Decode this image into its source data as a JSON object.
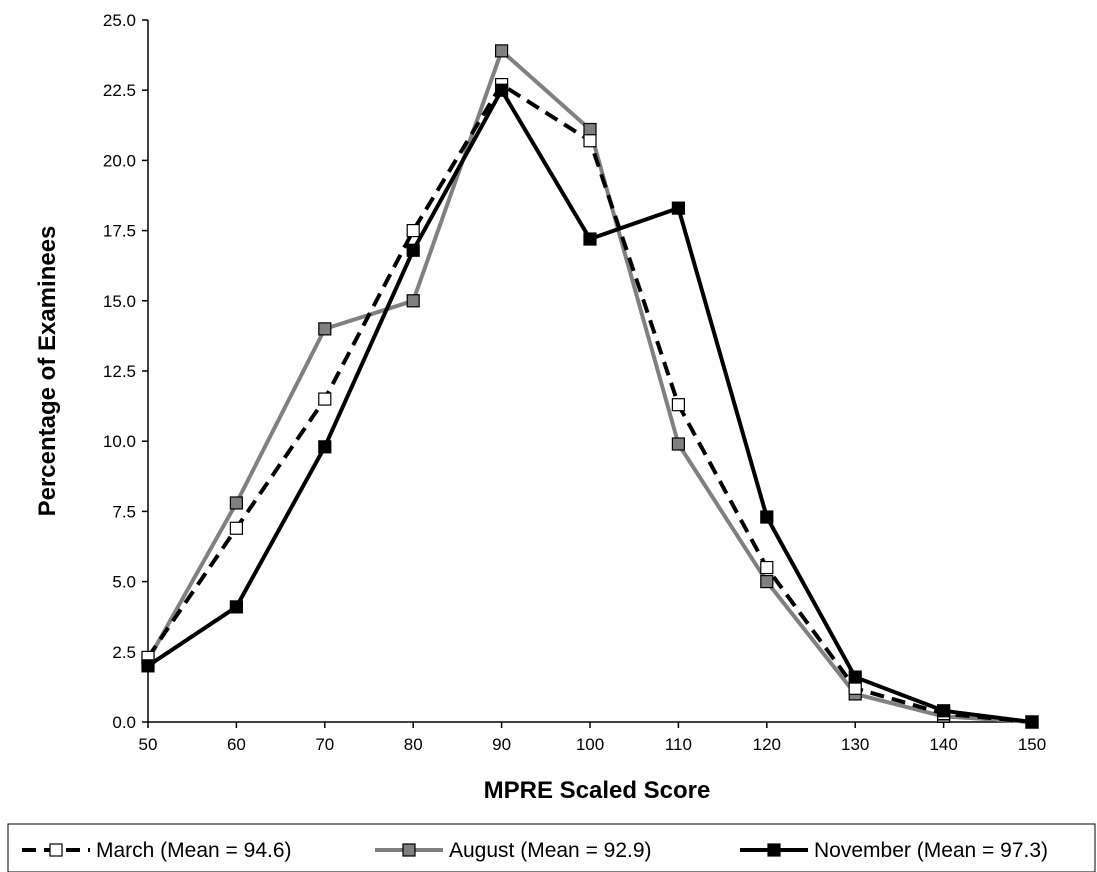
{
  "chart_data": {
    "type": "line",
    "title": "",
    "xlabel": "MPRE Scaled Score",
    "ylabel": "Percentage of Examinees",
    "x": [
      50,
      60,
      70,
      80,
      90,
      100,
      110,
      120,
      130,
      140,
      150
    ],
    "xlim": [
      50,
      150
    ],
    "ylim": [
      0,
      25
    ],
    "x_ticks": [
      "50",
      "60",
      "70",
      "80",
      "90",
      "100",
      "110",
      "120",
      "130",
      "140",
      "150"
    ],
    "y_ticks": [
      "0.0",
      "2.5",
      "5.0",
      "7.5",
      "10.0",
      "12.5",
      "15.0",
      "17.5",
      "20.0",
      "22.5",
      "25.0"
    ],
    "grid": false,
    "legend_position": "bottom",
    "series": [
      {
        "name": "March (Mean = 94.6)",
        "values": [
          2.3,
          6.9,
          11.5,
          17.5,
          22.7,
          20.7,
          11.3,
          5.5,
          1.2,
          0.3,
          0.0
        ],
        "line_color": "#000000",
        "line_style": "dashed",
        "marker_fill": "#ffffff"
      },
      {
        "name": "August (Mean = 92.9)",
        "values": [
          2.2,
          7.8,
          14.0,
          15.0,
          23.9,
          21.1,
          9.9,
          5.0,
          1.0,
          0.2,
          0.0
        ],
        "line_color": "#808080",
        "line_style": "solid",
        "marker_fill": "#808080"
      },
      {
        "name": "November (Mean = 97.3)",
        "values": [
          2.0,
          4.1,
          9.8,
          16.8,
          22.5,
          17.2,
          18.3,
          7.3,
          1.6,
          0.4,
          0.0
        ],
        "line_color": "#000000",
        "line_style": "solid",
        "marker_fill": "#000000"
      }
    ]
  }
}
